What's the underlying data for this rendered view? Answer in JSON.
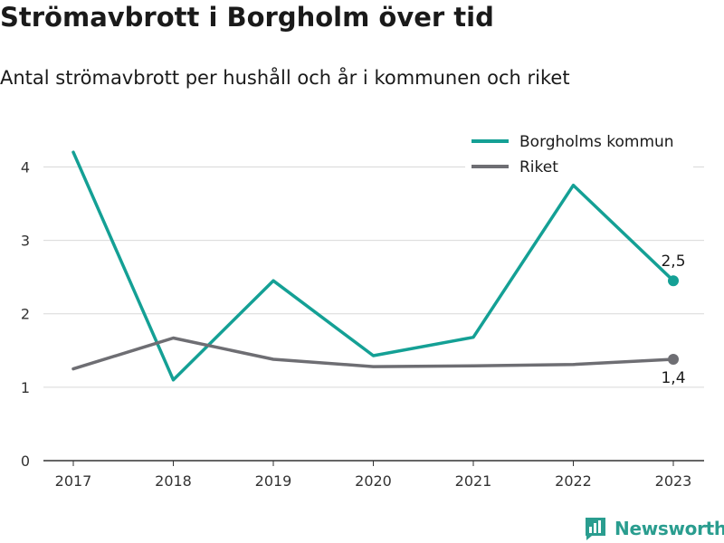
{
  "header": {
    "title": "Strömavbrott i Borgholm över tid",
    "subtitle": "Antal strömavbrott per hushåll och år i kommunen och riket"
  },
  "brand": {
    "name": "Newsworthy",
    "icon": "newsworthy-logo-icon",
    "color": "#2a9d8f"
  },
  "chart_data": {
    "type": "line",
    "title": "Strömavbrott i Borgholm över tid",
    "subtitle": "Antal strömavbrott per hushåll och år i kommunen och riket",
    "xlabel": "",
    "ylabel": "",
    "x": [
      "2017",
      "2018",
      "2019",
      "2020",
      "2021",
      "2022",
      "2023"
    ],
    "ylim": [
      0,
      4.4
    ],
    "yticks": [
      "0",
      "1",
      "2",
      "3",
      "4"
    ],
    "grid": true,
    "legend_placement": "top-right",
    "series": [
      {
        "name": "Borgholms kommun",
        "color": "#14a095",
        "values": [
          4.2,
          1.1,
          2.45,
          1.43,
          1.68,
          3.75,
          2.45
        ],
        "end_label": "2,5"
      },
      {
        "name": "Riket",
        "color": "#6e6e73",
        "values": [
          1.25,
          1.67,
          1.38,
          1.28,
          1.29,
          1.31,
          1.38
        ],
        "end_label": "1,4"
      }
    ]
  }
}
